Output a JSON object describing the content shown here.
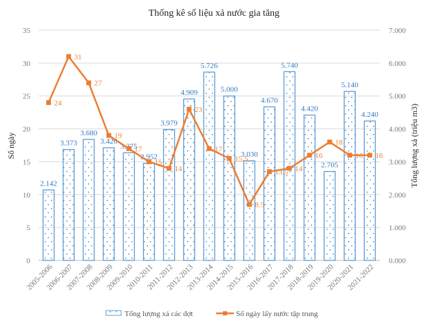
{
  "chart_data": {
    "type": "bar",
    "title": "Thống kê số liệu xả nước gia tăng",
    "categories": [
      "2005-2006",
      "2006-2007",
      "2007-2008",
      "2008-2009",
      "2009-2010",
      "2010-2011",
      "2011-2012",
      "2012-2013",
      "2013-2014",
      "2014-2015",
      "2015-2016",
      "2016-2017",
      "2017-2018",
      "2018-2019",
      "2019-2020",
      "2020-2021",
      "2021-2022"
    ],
    "series": [
      {
        "name": "Tổng lượng xả các đợt",
        "type": "bar",
        "axis": "right",
        "values": [
          2.142,
          3.373,
          3.68,
          3.426,
          3.275,
          2.952,
          3.979,
          4.909,
          5.726,
          5.0,
          3.03,
          4.67,
          5.74,
          4.42,
          2.705,
          5.14,
          4.24
        ],
        "labels": [
          "2.142",
          "3.373",
          "3.680",
          "3.426",
          "3.275",
          "2.952",
          "3.979",
          "4.909",
          "5.726",
          "5.000",
          "3.030",
          "4.670",
          "5.740",
          "4.420",
          "2.705",
          "5.140",
          "4.240"
        ],
        "color": "#5b9bd5"
      },
      {
        "name": "Số ngày lấy nước tập trung",
        "type": "line",
        "axis": "left",
        "values": [
          24,
          31,
          27,
          19,
          17,
          15,
          14,
          23,
          17,
          15.5,
          8.5,
          13.5,
          14,
          16,
          18,
          16,
          16
        ],
        "labels": [
          "24",
          "31",
          "27",
          "19",
          "17",
          "15",
          "14",
          "23",
          "17",
          "15.5",
          "8.5",
          "13.5",
          "14",
          "16",
          "18",
          "16",
          "16"
        ],
        "color": "#ed7d31"
      }
    ],
    "ylabel": "Số ngày",
    "ylabel_right": "Tổng lượng xả (triệu m3)",
    "ylim": [
      0,
      35
    ],
    "ylim_right": [
      0,
      7
    ],
    "yticks": [
      "0",
      "5",
      "10",
      "15",
      "20",
      "25",
      "30",
      "35"
    ],
    "yticks_right": [
      "0.000",
      "1.000",
      "2.000",
      "3.000",
      "4.000",
      "5.000",
      "6.000",
      "7.000"
    ],
    "grid": true,
    "legend_position": "bottom"
  }
}
